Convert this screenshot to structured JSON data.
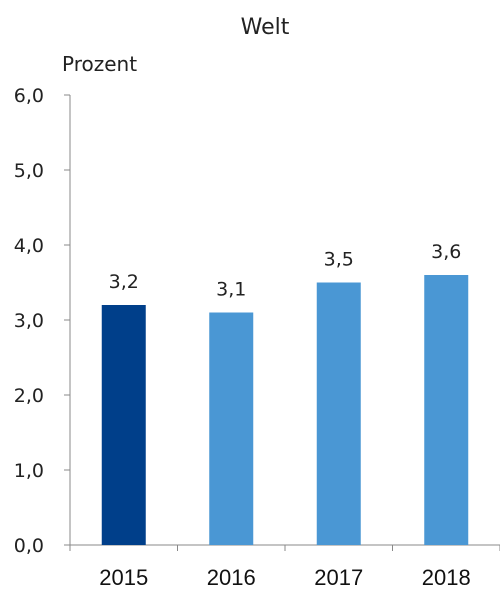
{
  "chart_data": {
    "type": "bar",
    "title": "Welt",
    "ylabel": "Prozent",
    "xlabel": "",
    "categories": [
      "2015",
      "2016",
      "2017",
      "2018"
    ],
    "values": [
      3.2,
      3.1,
      3.5,
      3.6
    ],
    "value_labels": [
      "3,2",
      "3,1",
      "3,5",
      "3,6"
    ],
    "ylim": [
      0,
      6
    ],
    "y_ticks": [
      "0,0",
      "1,0",
      "2,0",
      "3,0",
      "4,0",
      "5,0",
      "6,0"
    ],
    "grid": false,
    "legend": "none",
    "colors": [
      "#003f8a",
      "#4a97d4",
      "#4a97d4",
      "#4a97d4"
    ]
  }
}
